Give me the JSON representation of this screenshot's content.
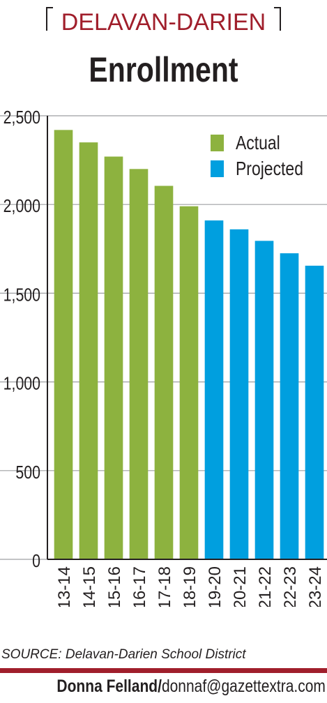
{
  "header": {
    "kicker": "DELAVAN-DARIEN",
    "title": "Enrollment",
    "kicker_color": "#a01e2b"
  },
  "chart_data": {
    "type": "bar",
    "title": "Enrollment",
    "xlabel": "",
    "ylabel": "",
    "categories": [
      "2013-14",
      "2014-15",
      "2015-16",
      "2016-17",
      "2017-18",
      "2018-19",
      "2019-20",
      "2020-21",
      "2021-22",
      "2022-23",
      "2023-24"
    ],
    "series": [
      {
        "name": "Actual",
        "color": "#8db23f",
        "values": [
          2420,
          2350,
          2270,
          2200,
          2105,
          1990,
          null,
          null,
          null,
          null,
          null
        ]
      },
      {
        "name": "Projected",
        "color": "#009fdf",
        "values": [
          null,
          null,
          null,
          null,
          null,
          null,
          1910,
          1860,
          1795,
          1725,
          1655
        ]
      }
    ],
    "ylim": [
      0,
      2500
    ],
    "yticks": [
      0,
      500,
      1000,
      1500,
      2000,
      2500
    ],
    "ytick_labels": [
      "0",
      "500",
      "1,000",
      "1,500",
      "2,000",
      "2,500"
    ],
    "grid": true,
    "legend_position": "top-right"
  },
  "footer": {
    "source": "SOURCE: Delavan-Darien School District",
    "credit_name": "Donna Felland/",
    "credit_email": "donnaf@gazettextra.com"
  }
}
